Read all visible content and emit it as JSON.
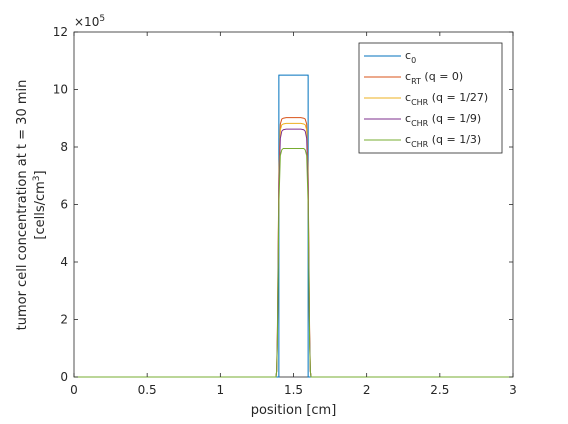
{
  "chart_data": {
    "type": "line",
    "xlabel": "position [cm]",
    "ylabel_line1": "tumor cell concentration at  t = 30 min",
    "ylabel_line2_prefix": "[cells/cm",
    "ylabel_line2_sup": "3",
    "ylabel_line2_suffix": "]",
    "xlim": [
      0,
      3
    ],
    "ylim": [
      0,
      12
    ],
    "exponent_base": "×10",
    "exponent_power": "5",
    "x_ticks": [
      {
        "value": 0,
        "label": "0"
      },
      {
        "value": 0.5,
        "label": "0.5"
      },
      {
        "value": 1,
        "label": "1"
      },
      {
        "value": 1.5,
        "label": "1.5"
      },
      {
        "value": 2,
        "label": "2"
      },
      {
        "value": 2.5,
        "label": "2.5"
      },
      {
        "value": 3,
        "label": "3"
      }
    ],
    "y_ticks": [
      {
        "value": 0,
        "label": "0"
      },
      {
        "value": 2,
        "label": "2"
      },
      {
        "value": 4,
        "label": "4"
      },
      {
        "value": 6,
        "label": "6"
      },
      {
        "value": 8,
        "label": "8"
      },
      {
        "value": 10,
        "label": "10"
      },
      {
        "value": 12,
        "label": "12"
      }
    ],
    "legend_position": "top-right",
    "series": [
      {
        "legend_main": "c",
        "legend_sub": "0",
        "legend_tail": "",
        "color": "#0072BD",
        "x": [
          0,
          1.4,
          1.4,
          1.6,
          1.6,
          3
        ],
        "y": [
          0,
          0,
          10.5,
          10.5,
          0,
          0
        ]
      },
      {
        "legend_main": "c",
        "legend_sub": "RT",
        "legend_tail": " (q = 0)",
        "color": "#D95319",
        "x": [
          0,
          1.38,
          1.385,
          1.39,
          1.4,
          1.41,
          1.42,
          1.43,
          1.45,
          1.5,
          1.55,
          1.57,
          1.58,
          1.59,
          1.6,
          1.61,
          1.615,
          1.62,
          3
        ],
        "y": [
          0,
          0,
          0.2,
          1.6,
          7.0,
          8.8,
          8.97,
          9.0,
          9.02,
          9.02,
          9.02,
          9.0,
          8.97,
          8.8,
          7.0,
          1.6,
          0.2,
          0,
          0
        ]
      },
      {
        "legend_main": "c",
        "legend_sub": "CHR",
        "legend_tail": " (q = 1/27)",
        "color": "#EDB120",
        "x": [
          0,
          1.38,
          1.385,
          1.39,
          1.4,
          1.41,
          1.42,
          1.43,
          1.45,
          1.5,
          1.55,
          1.57,
          1.58,
          1.59,
          1.6,
          1.61,
          1.615,
          1.62,
          3
        ],
        "y": [
          0,
          0,
          0.2,
          1.5,
          6.8,
          8.6,
          8.77,
          8.8,
          8.82,
          8.82,
          8.82,
          8.8,
          8.77,
          8.6,
          6.8,
          1.5,
          0.2,
          0,
          0
        ]
      },
      {
        "legend_main": "c",
        "legend_sub": "CHR",
        "legend_tail": " (q  = 1/9)",
        "color": "#7E2F8E",
        "x": [
          0,
          1.38,
          1.385,
          1.39,
          1.4,
          1.41,
          1.42,
          1.43,
          1.45,
          1.5,
          1.55,
          1.57,
          1.58,
          1.59,
          1.6,
          1.61,
          1.615,
          1.62,
          3
        ],
        "y": [
          0,
          0,
          0.2,
          1.4,
          6.5,
          8.3,
          8.55,
          8.6,
          8.62,
          8.62,
          8.62,
          8.6,
          8.55,
          8.3,
          6.5,
          1.4,
          0.2,
          0,
          0
        ]
      },
      {
        "legend_main": "c",
        "legend_sub": "CHR",
        "legend_tail": " (q = 1/3)",
        "color": "#77AC30",
        "x": [
          0,
          1.38,
          1.385,
          1.39,
          1.4,
          1.41,
          1.42,
          1.43,
          1.45,
          1.5,
          1.55,
          1.57,
          1.58,
          1.59,
          1.6,
          1.61,
          1.615,
          1.62,
          3
        ],
        "y": [
          0,
          0,
          0.2,
          1.2,
          6.0,
          7.7,
          7.9,
          7.95,
          7.95,
          7.95,
          7.95,
          7.95,
          7.9,
          7.7,
          6.0,
          1.2,
          0.2,
          0,
          0
        ]
      }
    ]
  }
}
